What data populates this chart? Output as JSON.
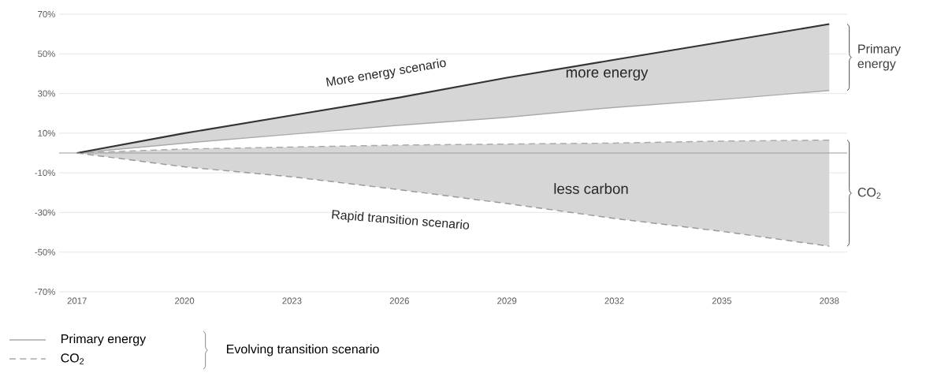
{
  "chart_data": {
    "type": "line",
    "x": [
      2017,
      2020,
      2023,
      2026,
      2029,
      2032,
      2035,
      2038
    ],
    "series": [
      {
        "color": "#333333",
        "line_style": "solid",
        "values": [
          0,
          10,
          19,
          28,
          38,
          47,
          56,
          65
        ],
        "lower": [
          0,
          5,
          9.5,
          14,
          18,
          23,
          27,
          31.5
        ],
        "upper": [
          0,
          10,
          19,
          28,
          38,
          47,
          56,
          65
        ]
      },
      {
        "name": "Primary energy",
        "color": "#aaaaaa",
        "line_style": "solid",
        "values": [
          0,
          5,
          9.5,
          14,
          18,
          23,
          27,
          31.5
        ]
      },
      {
        "name": "CO$_{2}$",
        "color": "#aaaaaa",
        "line_style": "dashed",
        "values": [
          0,
          2,
          3,
          4,
          4.5,
          5,
          6,
          6.5
        ]
      },
      {
        "color": "#999999",
        "line_style": "dashed",
        "values": [
          0,
          -7,
          -12,
          -18.5,
          -25.5,
          -33,
          -39.5,
          -47
        ],
        "lower": [
          0,
          -7,
          -12,
          -18.5,
          -25.5,
          -33,
          -39.5,
          -47
        ],
        "upper": [
          0,
          2,
          3,
          4,
          4.5,
          5,
          6,
          6.5
        ]
      }
    ],
    "xlim": [
      2016.5,
      2038.5
    ],
    "xticks": [
      2017,
      2020,
      2023,
      2026,
      2029,
      2032,
      2035,
      2038
    ],
    "ylim": [
      -70,
      70
    ],
    "yticks": [
      {
        "value": -70,
        "label": "-70%"
      },
      {
        "value": -50,
        "label": "-50%"
      },
      {
        "value": -30,
        "label": "-30%"
      },
      {
        "value": -10,
        "label": "-10%"
      },
      {
        "value": 10,
        "label": "10%"
      },
      {
        "value": 30,
        "label": "30%"
      },
      {
        "value": 50,
        "label": "50%"
      },
      {
        "value": 70,
        "label": "70%"
      }
    ],
    "grid": "y",
    "ref_lines": [
      {
        "axis": "y",
        "value": 0,
        "color": "#999999"
      }
    ],
    "legend": "bottom left",
    "legend_title": "Evolving transition scenario",
    "annotations": [
      "More energy scenario",
      "more energy",
      "less carbon",
      "Rapid transition scenario",
      "Primary energy",
      "CO$_{2}$"
    ]
  }
}
